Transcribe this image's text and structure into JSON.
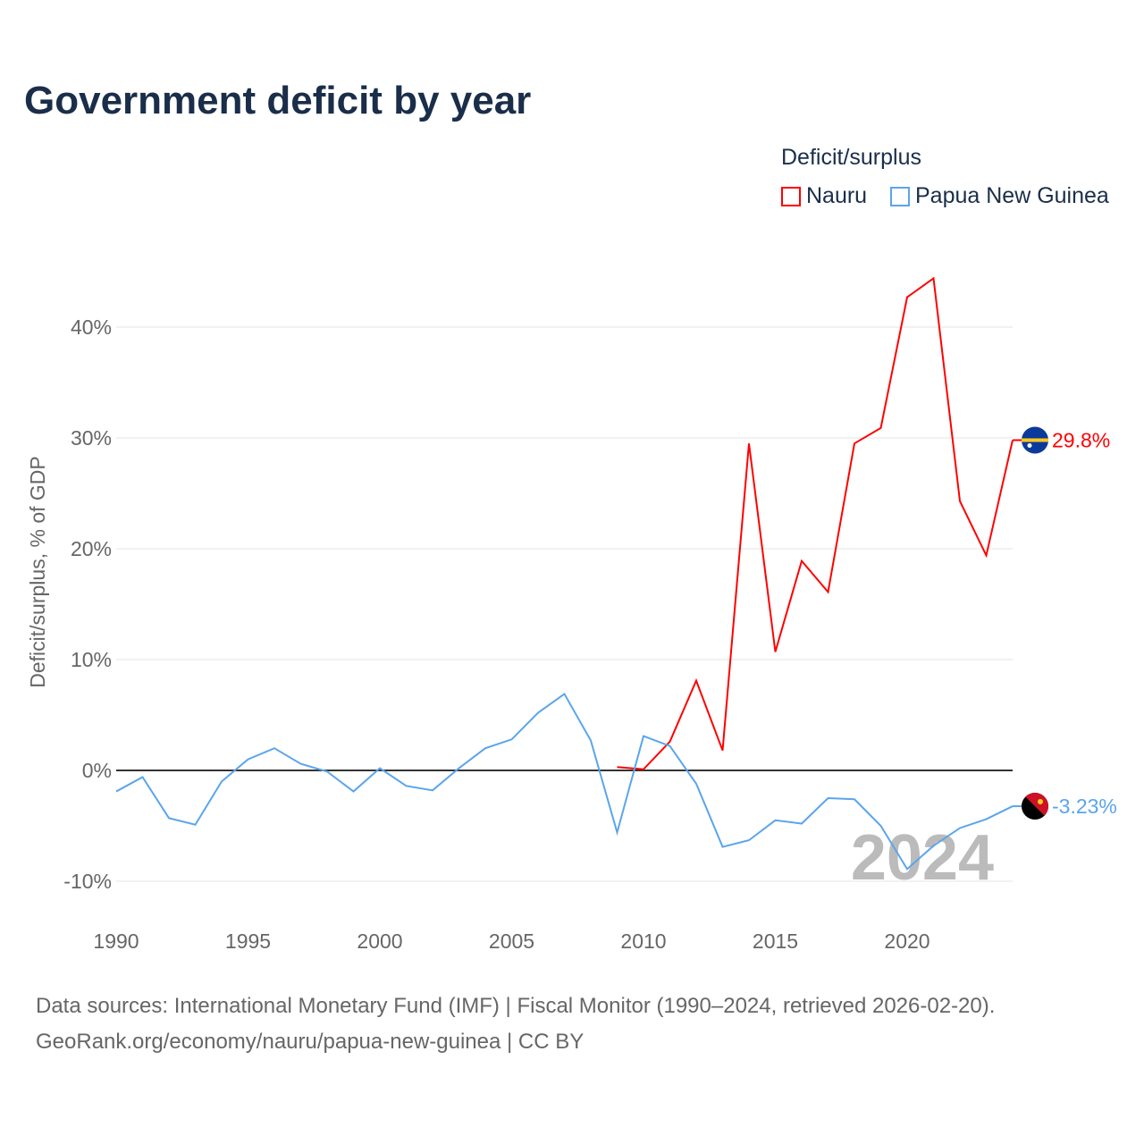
{
  "title": "Government deficit by year",
  "legend": {
    "title": "Deficit/surplus"
  },
  "footer": {
    "line1": "Data sources: International Monetary Fund (IMF) | Fiscal Monitor (1990–2024, retrieved 2026-02-20).",
    "line2": "GeoRank.org/economy/nauru/papua-new-guinea | CC BY"
  },
  "chart_data": {
    "type": "line",
    "title": "Government deficit by year",
    "xlabel": "",
    "ylabel": "Deficit/surplus, % of GDP",
    "xlim": [
      1990,
      2024
    ],
    "ylim": [
      -10,
      45
    ],
    "xticks": [
      1990,
      1995,
      2000,
      2005,
      2010,
      2015,
      2020
    ],
    "yticks": [
      -10,
      0,
      10,
      20,
      30,
      40
    ],
    "ytick_labels": [
      "-10%",
      "0%",
      "10%",
      "20%",
      "30%",
      "40%"
    ],
    "grid": true,
    "legend_position": "top-right",
    "watermark": "2024",
    "series": [
      {
        "name": "Nauru",
        "color": "#ff0000",
        "end_label": "29.8%",
        "x": [
          2009,
          2010,
          2011,
          2012,
          2013,
          2014,
          2015,
          2016,
          2017,
          2018,
          2019,
          2020,
          2021,
          2022,
          2023,
          2024
        ],
        "values": [
          0.3,
          0.1,
          2.6,
          8.1,
          1.8,
          29.5,
          10.7,
          18.9,
          16.1,
          29.5,
          30.9,
          42.7,
          44.4,
          24.3,
          19.4,
          29.8
        ]
      },
      {
        "name": "Papua New Guinea",
        "color": "#5aa5ec",
        "end_label": "-3.23%",
        "x": [
          1990,
          1991,
          1992,
          1993,
          1994,
          1995,
          1996,
          1997,
          1998,
          1999,
          2000,
          2001,
          2002,
          2003,
          2004,
          2005,
          2006,
          2007,
          2008,
          2009,
          2010,
          2011,
          2012,
          2013,
          2014,
          2015,
          2016,
          2017,
          2018,
          2019,
          2020,
          2021,
          2022,
          2023,
          2024
        ],
        "values": [
          -1.9,
          -0.6,
          -4.3,
          -4.9,
          -1.0,
          1.0,
          2.0,
          0.6,
          -0.1,
          -1.9,
          0.2,
          -1.4,
          -1.8,
          0.2,
          2.0,
          2.8,
          5.2,
          6.9,
          2.7,
          -5.6,
          3.1,
          2.2,
          -1.2,
          -6.9,
          -6.3,
          -4.5,
          -4.8,
          -2.5,
          -2.6,
          -5.0,
          -8.9,
          -6.8,
          -5.2,
          -4.4,
          -3.23
        ]
      }
    ]
  }
}
